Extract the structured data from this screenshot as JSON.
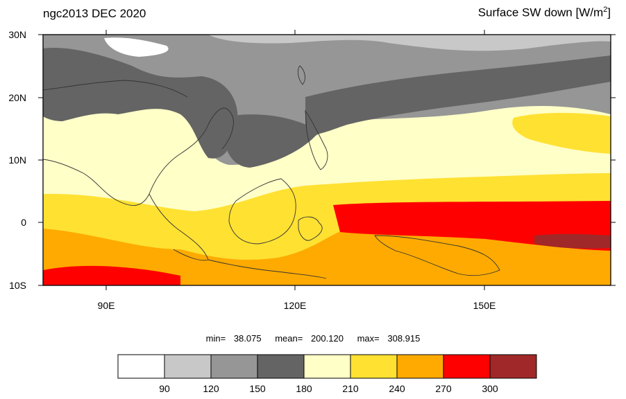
{
  "header": {
    "left_title": "ngc2013 DEC 2020",
    "right_title_main": "Surface SW down [W/m",
    "right_title_sup": "2",
    "right_title_end": "]"
  },
  "map": {
    "lat_labels": [
      "30N",
      "20N",
      "10N",
      "0",
      "10S"
    ],
    "lon_labels": [
      "90E",
      "120E",
      "150E"
    ],
    "region": {
      "lon_min": 80,
      "lon_max": 170,
      "lat_min": -10,
      "lat_max": 30
    }
  },
  "stats": {
    "min_label": "min=",
    "min_value": "38.075",
    "mean_label": "mean=",
    "mean_value": "200.120",
    "max_label": "max=",
    "max_value": "308.915"
  },
  "colorbar": {
    "ticks": [
      "90",
      "120",
      "150",
      "180",
      "210",
      "240",
      "270",
      "300"
    ],
    "colors": [
      "#ffffff",
      "#c8c8c8",
      "#969696",
      "#646464",
      "#ffffc8",
      "#ffe132",
      "#ffaa00",
      "#ff0000",
      "#a02828"
    ]
  }
}
